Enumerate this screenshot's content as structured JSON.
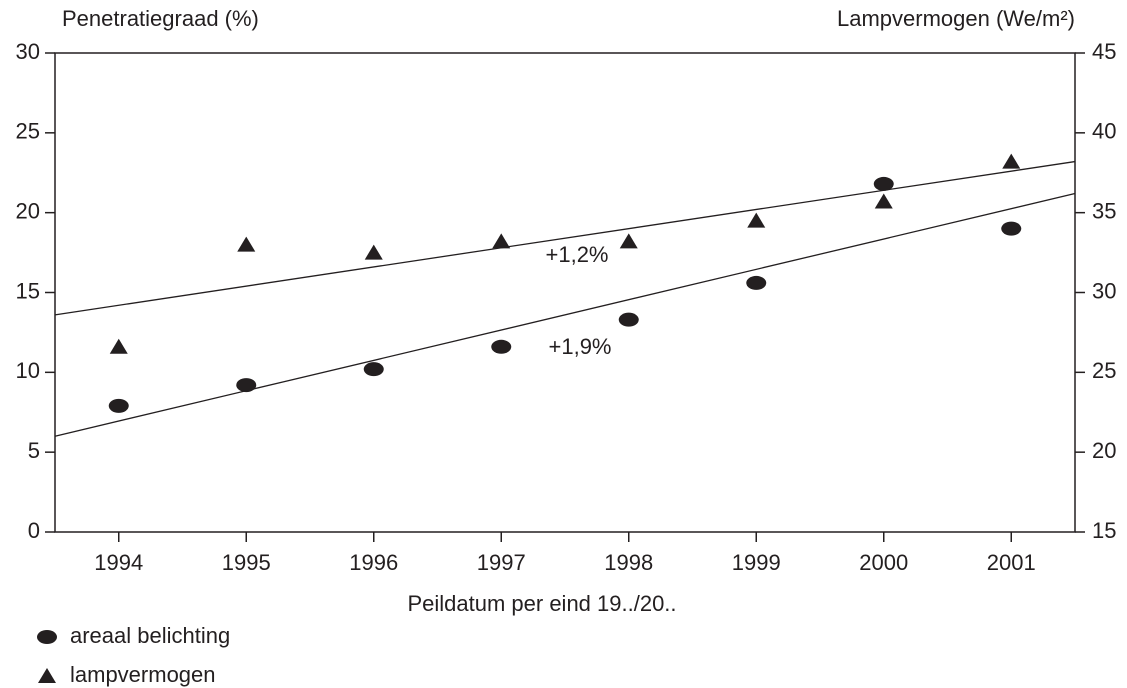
{
  "chart_data": {
    "type": "scatter",
    "ylabel": "Penetratiegraad (%)",
    "y2label": "Lampvermogen (We/m²)",
    "xlabel": "Peildatum per eind 19../20..",
    "x": [
      1994,
      1995,
      1996,
      1997,
      1998,
      1999,
      2000,
      2001
    ],
    "xlim": [
      1993.5,
      2001.5
    ],
    "xticks": [
      1994,
      1995,
      1996,
      1997,
      1998,
      1999,
      2000,
      2001
    ],
    "ylim": [
      0,
      30
    ],
    "yticks": [
      0,
      5,
      10,
      15,
      20,
      25,
      30
    ],
    "y2lim": [
      15,
      45
    ],
    "y2ticks": [
      15,
      20,
      25,
      30,
      35,
      40,
      45
    ],
    "series": [
      {
        "name": "areaal belichting",
        "color": "#231f20",
        "marker": "circle",
        "values": [
          7.9,
          9.2,
          10.2,
          11.6,
          13.3,
          15.6,
          21.8,
          19.0
        ]
      },
      {
        "name": "lampvermogen",
        "color": "#231f20",
        "marker": "triangle",
        "axis": "y2",
        "values": [
          26.6,
          33.0,
          32.5,
          33.2,
          33.2,
          34.5,
          35.7,
          38.2
        ]
      }
    ],
    "trend_lines": [
      {
        "x": [
          1993.5,
          2001.5
        ],
        "values": [
          6.0,
          21.2
        ]
      },
      {
        "x": [
          1993.5,
          2001.5
        ],
        "values": [
          13.6,
          23.2
        ]
      }
    ],
    "annotations": [
      "+1,2%",
      "+1,9%"
    ]
  }
}
